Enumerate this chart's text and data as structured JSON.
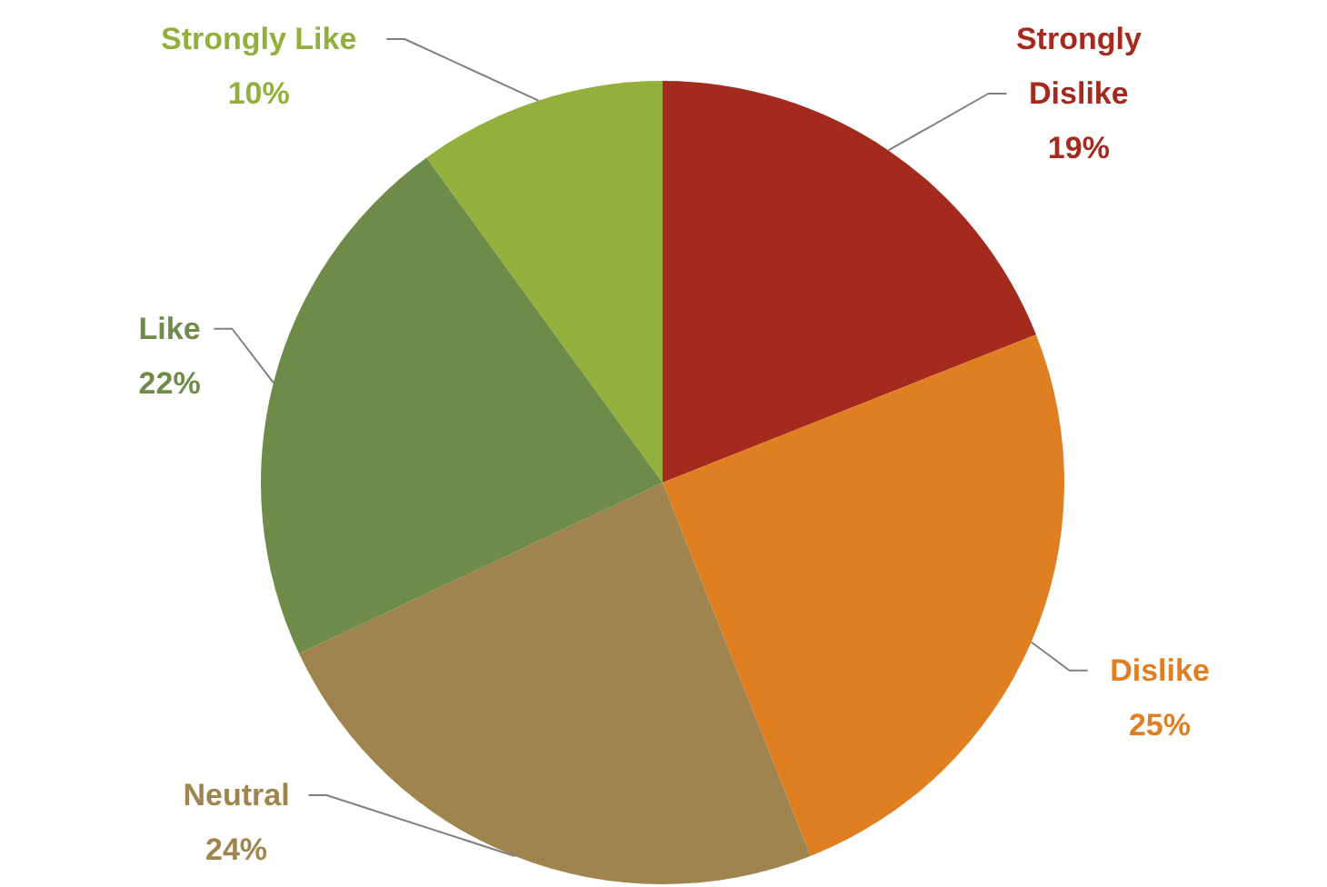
{
  "chart_data": {
    "type": "pie",
    "categories": [
      "Strongly Dislike",
      "Dislike",
      "Neutral",
      "Like",
      "Strongly Like"
    ],
    "values": [
      19,
      25,
      24,
      22,
      10
    ],
    "colors": [
      "#a52a1e",
      "#e07f22",
      "#a0844e",
      "#6f8b4a",
      "#93b03c"
    ],
    "value_labels": [
      "19%",
      "25%",
      "24%",
      "22%",
      "10%"
    ]
  }
}
